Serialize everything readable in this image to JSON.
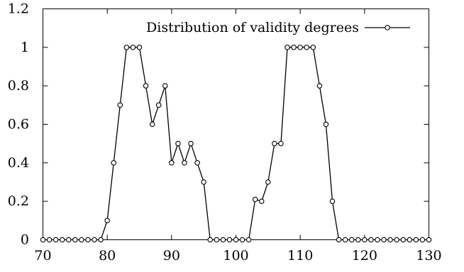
{
  "chart_data": {
    "type": "line",
    "xlim": [
      70,
      130
    ],
    "ylim": [
      0,
      1.2
    ],
    "xticks": [
      70,
      80,
      90,
      100,
      110,
      120,
      130
    ],
    "yticks": [
      0,
      0.2,
      0.4,
      0.6,
      0.8,
      1,
      1.2
    ],
    "xtick_labels": [
      "70",
      "80",
      "90",
      "100",
      "110",
      "120",
      "130"
    ],
    "ytick_labels": [
      "0",
      "0.2",
      "0.4",
      "0.6",
      "0.8",
      "1",
      "1.2"
    ],
    "grid": false,
    "legend_position": "top-right",
    "series": [
      {
        "name": "Distribution of validity degrees",
        "marker": "open-circle",
        "color": "#000000",
        "x": [
          70,
          71,
          72,
          73,
          74,
          75,
          76,
          77,
          78,
          79,
          80,
          81,
          82,
          83,
          84,
          85,
          86,
          87,
          88,
          89,
          90,
          91,
          92,
          93,
          94,
          95,
          96,
          97,
          98,
          99,
          100,
          101,
          102,
          103,
          104,
          105,
          106,
          107,
          108,
          109,
          110,
          111,
          112,
          113,
          114,
          115,
          116,
          117,
          118,
          119,
          120,
          121,
          122,
          123,
          124,
          125,
          126,
          127,
          128,
          129,
          130
        ],
        "y": [
          0,
          0,
          0,
          0,
          0,
          0,
          0,
          0,
          0,
          0,
          0.1,
          0.4,
          0.7,
          1,
          1,
          1,
          0.8,
          0.6,
          0.7,
          0.8,
          0.4,
          0.5,
          0.4,
          0.5,
          0.4,
          0.3,
          0,
          0,
          0,
          0,
          0,
          0,
          0,
          0.21,
          0.2,
          0.3,
          0.5,
          0.5,
          1,
          1,
          1,
          1,
          1,
          0.8,
          0.6,
          0.2,
          0,
          0,
          0,
          0,
          0,
          0,
          0,
          0,
          0,
          0,
          0,
          0,
          0,
          0,
          0
        ]
      }
    ]
  }
}
